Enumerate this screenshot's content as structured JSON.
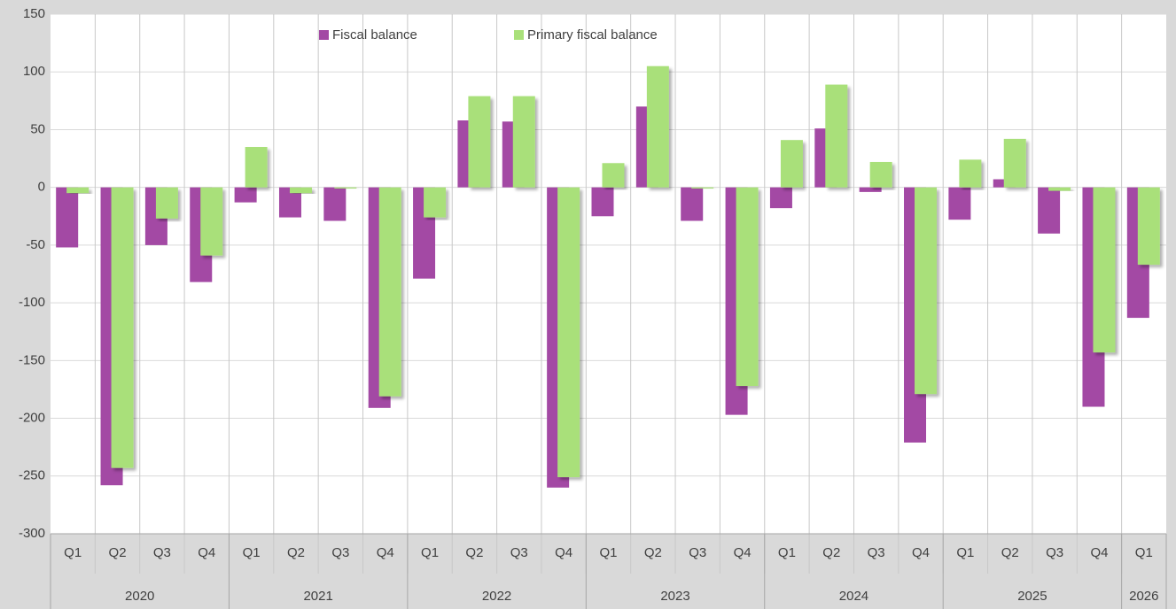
{
  "chart_data": {
    "type": "bar",
    "groups": [
      {
        "label": "2020",
        "quarters": [
          "Q1",
          "Q2",
          "Q3",
          "Q4"
        ]
      },
      {
        "label": "2021",
        "quarters": [
          "Q1",
          "Q2",
          "Q3",
          "Q4"
        ]
      },
      {
        "label": "2022",
        "quarters": [
          "Q1",
          "Q2",
          "Q3",
          "Q4"
        ]
      },
      {
        "label": "2023",
        "quarters": [
          "Q1",
          "Q2",
          "Q3",
          "Q4"
        ]
      },
      {
        "label": "2024",
        "quarters": [
          "Q1",
          "Q2",
          "Q3",
          "Q4"
        ]
      },
      {
        "label": "2025",
        "quarters": [
          "Q1",
          "Q2",
          "Q3",
          "Q4"
        ]
      },
      {
        "label": "2026",
        "quarters": [
          "Q1"
        ]
      }
    ],
    "series": [
      {
        "name": "Fiscal balance",
        "color": "#a349a4",
        "values": [
          -52,
          -258,
          -50,
          -82,
          -13,
          -26,
          -29,
          -191,
          -79,
          58,
          57,
          -260,
          -25,
          70,
          -29,
          -197,
          -18,
          51,
          -4,
          -221,
          -28,
          7,
          -40,
          -190,
          -113
        ]
      },
      {
        "name": "Primary fiscal balance",
        "color": "#a9e07a",
        "values": [
          -5,
          -243,
          -27,
          -59,
          35,
          -5,
          -1,
          -181,
          -26,
          79,
          79,
          -251,
          21,
          105,
          -1,
          -172,
          41,
          89,
          22,
          -179,
          24,
          42,
          -3,
          -143,
          -67
        ]
      }
    ],
    "ylim": [
      -300,
      150
    ],
    "yticks": [
      -300,
      -250,
      -200,
      -150,
      -100,
      -50,
      0,
      50,
      100,
      150
    ],
    "grid": true,
    "legend": "top"
  }
}
